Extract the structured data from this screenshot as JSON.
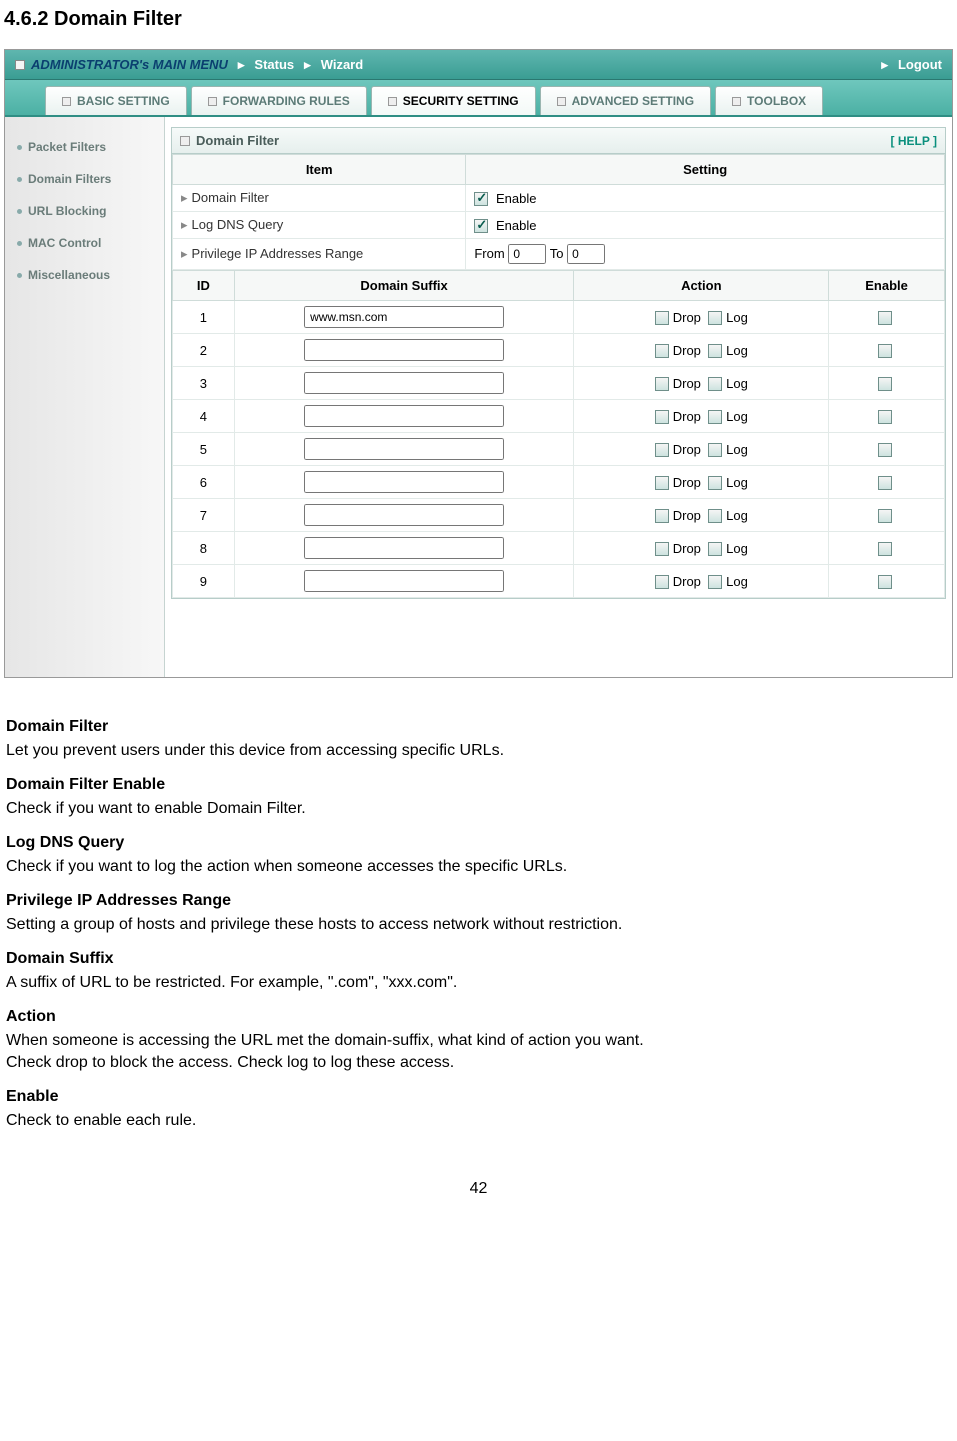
{
  "doc": {
    "heading": "4.6.2 Domain Filter",
    "page_number": "42"
  },
  "topbar": {
    "admin_title": "ADMINISTRATOR's MAIN MENU",
    "status": "Status",
    "wizard": "Wizard",
    "logout": "Logout"
  },
  "tabs": {
    "basic": "BASIC SETTING",
    "forwarding": "FORWARDING RULES",
    "security": "SECURITY SETTING",
    "advanced": "ADVANCED SETTING",
    "toolbox": "TOOLBOX"
  },
  "sidebar": {
    "items": [
      "Packet Filters",
      "Domain Filters",
      "URL Blocking",
      "MAC Control",
      "Miscellaneous"
    ]
  },
  "panel": {
    "title": "Domain Filter",
    "help": "[ HELP ]",
    "headers": {
      "item": "Item",
      "setting": "Setting"
    },
    "rows": {
      "domain_filter": {
        "label": "Domain Filter",
        "enable_text": "Enable"
      },
      "log_dns": {
        "label": "Log DNS Query",
        "enable_text": "Enable"
      },
      "priv_range": {
        "label": "Privilege IP Addresses Range",
        "from_label": "From",
        "to_label": "To",
        "from_val": "0",
        "to_val": "0"
      }
    },
    "grid_headers": {
      "id": "ID",
      "suffix": "Domain Suffix",
      "action": "Action",
      "enable": "Enable"
    },
    "action_labels": {
      "drop": "Drop",
      "log": "Log"
    },
    "grid_rows": [
      {
        "id": "1",
        "suffix": "www.msn.com"
      },
      {
        "id": "2",
        "suffix": ""
      },
      {
        "id": "3",
        "suffix": ""
      },
      {
        "id": "4",
        "suffix": ""
      },
      {
        "id": "5",
        "suffix": ""
      },
      {
        "id": "6",
        "suffix": ""
      },
      {
        "id": "7",
        "suffix": ""
      },
      {
        "id": "8",
        "suffix": ""
      },
      {
        "id": "9",
        "suffix": ""
      }
    ]
  },
  "definitions": [
    {
      "term": "Domain Filter",
      "desc": "Let you prevent users under this device from accessing specific URLs."
    },
    {
      "term": "Domain Filter Enable",
      "desc": "Check if you want to enable Domain Filter."
    },
    {
      "term": "Log DNS Query",
      "desc": "Check if you want to log the action when someone accesses the specific URLs."
    },
    {
      "term": "Privilege IP Addresses Range",
      "desc": "Setting a group of hosts and privilege these hosts to access network without restriction."
    },
    {
      "term": "Domain Suffix",
      "desc": "A suffix of URL to be restricted. For example, \".com\", \"xxx.com\"."
    },
    {
      "term": "Action",
      "desc": "When someone is accessing the URL met the domain-suffix, what kind of action you want."
    },
    {
      "term": "",
      "desc": "Check drop to block the access. Check log to log these access."
    },
    {
      "term": "Enable",
      "desc": "Check to enable each rule."
    }
  ]
}
